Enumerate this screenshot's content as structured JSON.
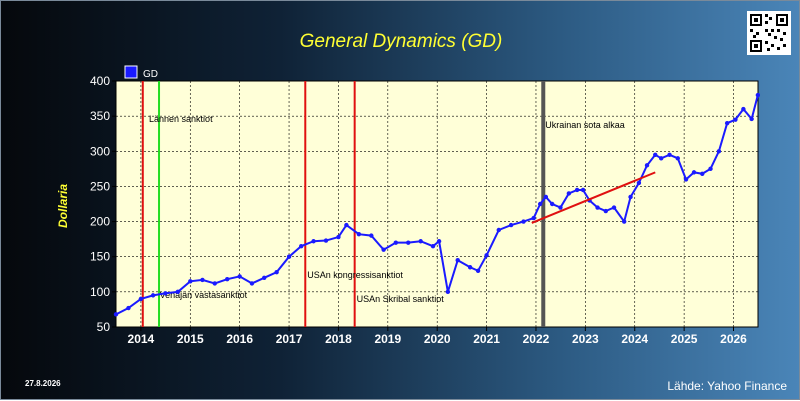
{
  "header": {
    "title": "General Dynamics (GD)",
    "date": "27.8.2026",
    "source": "Lähde: Yahoo Finance"
  },
  "icons": {
    "qr": "qr-code-icon"
  },
  "colors": {
    "plot_bg": "#ffffd8",
    "series": "#1a1aff",
    "trend": "#e01010",
    "event_red": "#e01010",
    "event_green": "#22dd22",
    "event_gray": "#555555"
  },
  "chart_data": {
    "type": "line",
    "title": "General Dynamics (GD)",
    "xlabel": "",
    "ylabel": "Dollaria",
    "xlim": [
      "2013-07-01",
      "2026-07-01"
    ],
    "ylim": [
      50,
      400
    ],
    "yticks": [
      50,
      100,
      150,
      200,
      250,
      300,
      350,
      400
    ],
    "xticks": [
      "2014",
      "2015",
      "2016",
      "2017",
      "2018",
      "2019",
      "2020",
      "2021",
      "2022",
      "2023",
      "2024",
      "2025",
      "2026"
    ],
    "grid": true,
    "legend": {
      "position": "top-left",
      "entries": [
        "GD"
      ]
    },
    "series": [
      {
        "name": "GD",
        "x": [
          "2013-07-01",
          "2013-10-01",
          "2014-01-01",
          "2014-04-01",
          "2014-07-01",
          "2014-10-01",
          "2015-01-01",
          "2015-04-01",
          "2015-07-01",
          "2015-10-01",
          "2016-01-01",
          "2016-04-01",
          "2016-07-01",
          "2016-10-01",
          "2017-01-01",
          "2017-04-01",
          "2017-07-01",
          "2017-10-01",
          "2018-01-01",
          "2018-03-01",
          "2018-06-01",
          "2018-09-01",
          "2018-12-01",
          "2019-03-01",
          "2019-06-01",
          "2019-09-01",
          "2019-12-01",
          "2020-01-15",
          "2020-03-20",
          "2020-06-01",
          "2020-09-01",
          "2020-10-30",
          "2021-01-01",
          "2021-04-01",
          "2021-07-01",
          "2021-10-01",
          "2021-12-15",
          "2022-02-01",
          "2022-03-15",
          "2022-05-01",
          "2022-07-01",
          "2022-09-01",
          "2022-11-01",
          "2022-12-15",
          "2023-02-01",
          "2023-04-01",
          "2023-06-01",
          "2023-08-01",
          "2023-10-15",
          "2023-12-01",
          "2024-02-01",
          "2024-04-01",
          "2024-06-01",
          "2024-07-15",
          "2024-09-15",
          "2024-11-15",
          "2025-01-15",
          "2025-03-15",
          "2025-05-15",
          "2025-07-15",
          "2025-09-15",
          "2025-11-15",
          "2026-01-15",
          "2026-03-15",
          "2026-05-15",
          "2026-06-30"
        ],
        "y": [
          68,
          77,
          90,
          95,
          98,
          100,
          115,
          117,
          112,
          118,
          122,
          112,
          120,
          128,
          150,
          165,
          172,
          173,
          178,
          195,
          182,
          180,
          160,
          170,
          170,
          172,
          165,
          172,
          100,
          145,
          135,
          130,
          152,
          188,
          195,
          200,
          205,
          225,
          235,
          225,
          220,
          240,
          245,
          245,
          230,
          220,
          215,
          220,
          200,
          235,
          255,
          280,
          295,
          290,
          295,
          290,
          260,
          270,
          268,
          275,
          300,
          340,
          345,
          360,
          346,
          380
        ]
      }
    ],
    "trendline": {
      "x": [
        "2021-12-01",
        "2024-06-01"
      ],
      "y": [
        198,
        270
      ],
      "color": "#e01010"
    },
    "events": [
      {
        "date": "2014-01-15",
        "label": "",
        "color": "#e01010"
      },
      {
        "date": "2014-05-15",
        "label": "Lännen sanktiot",
        "color": "#22dd22"
      },
      {
        "date": "2014-08-01",
        "label": "Venäjän vastasanktiot",
        "color": "none"
      },
      {
        "date": "2017-05-01",
        "label": "USAn kongressisanktiot",
        "color": "#e01010"
      },
      {
        "date": "2018-05-01",
        "label": "USAn Skribal sanktiot",
        "color": "#e01010"
      },
      {
        "date": "2022-02-24",
        "label": "Ukrainan sota alkaa",
        "color": "#555555"
      }
    ]
  }
}
